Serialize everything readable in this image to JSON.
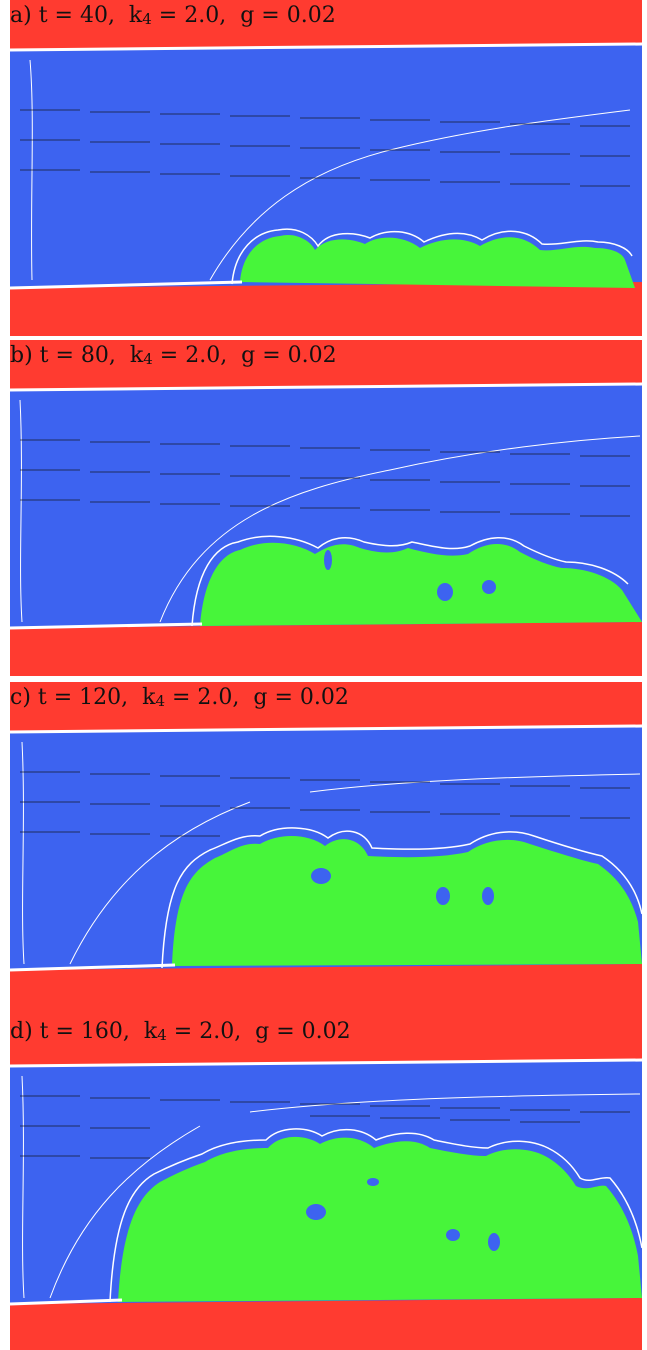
{
  "panels": [
    {
      "letter": "a)",
      "pre": " t = 40,  k",
      "sub": "4",
      "post": " = 2.0,  g = 0.02"
    },
    {
      "letter": "b)",
      "pre": " t = 80,  k",
      "sub": "4",
      "post": " = 2.0,  g = 0.02"
    },
    {
      "letter": "c)",
      "pre": " t = 120,  k",
      "sub": "4",
      "post": " = 2.0,  g = 0.02"
    },
    {
      "letter": "d)",
      "pre": " t = 160,  k",
      "sub": "4",
      "post": " = 2.0,  g = 0.02"
    }
  ],
  "colors": {
    "wall": "#ff3b30",
    "fluid": "#3d63f0",
    "growth": "#47f53a",
    "contour": "#ffffff",
    "arrows": "#111111"
  }
}
